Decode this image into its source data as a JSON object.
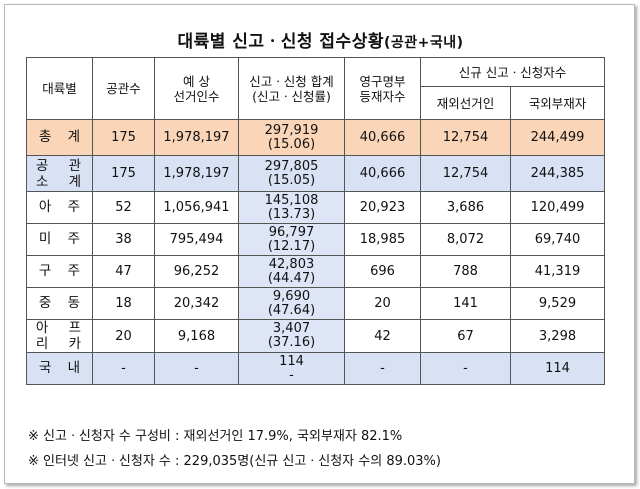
{
  "title": {
    "main": "대륙별 신고ㆍ신청 접수상황",
    "sub": "(공관+국내)"
  },
  "headers": {
    "region": "대륙별",
    "missions": "공관수",
    "expected": "예 상\n선거인수",
    "total": "신고ㆍ신청 합계\n(신고ㆍ신청률)",
    "permanent": "영구명부\n등재자수",
    "new_group": "신규 신고ㆍ신청자수",
    "overseas_voters": "재외선거인",
    "absentee": "국외부재자"
  },
  "rows": [
    {
      "region": "총 계",
      "missions": "175",
      "expected": "1,978,197",
      "total": "297,919",
      "rate": "(15.06)",
      "permanent": "40,666",
      "overseas": "12,754",
      "absentee": "244,499"
    },
    {
      "region": "공 관\n소 계",
      "missions": "175",
      "expected": "1,978,197",
      "total": "297,805",
      "rate": "(15.05)",
      "permanent": "40,666",
      "overseas": "12,754",
      "absentee": "244,385"
    },
    {
      "region": "아 주",
      "missions": "52",
      "expected": "1,056,941",
      "total": "145,108",
      "rate": "(13.73)",
      "permanent": "20,923",
      "overseas": "3,686",
      "absentee": "120,499"
    },
    {
      "region": "미 주",
      "missions": "38",
      "expected": "795,494",
      "total": "96,797",
      "rate": "(12.17)",
      "permanent": "18,985",
      "overseas": "8,072",
      "absentee": "69,740"
    },
    {
      "region": "구 주",
      "missions": "47",
      "expected": "96,252",
      "total": "42,803",
      "rate": "(44.47)",
      "permanent": "696",
      "overseas": "788",
      "absentee": "41,319"
    },
    {
      "region": "중 동",
      "missions": "18",
      "expected": "20,342",
      "total": "9,690",
      "rate": "(47.64)",
      "permanent": "20",
      "overseas": "141",
      "absentee": "9,529"
    },
    {
      "region": "아 프\n리 카",
      "missions": "20",
      "expected": "9,168",
      "total": "3,407",
      "rate": "(37.16)",
      "permanent": "42",
      "overseas": "67",
      "absentee": "3,298"
    },
    {
      "region": "국 내",
      "missions": "-",
      "expected": "-",
      "total": "114",
      "rate": "-",
      "permanent": "-",
      "overseas": "-",
      "absentee": "114"
    }
  ],
  "notes": [
    "※ 신고ㆍ신청자 수 구성비 : 재외선거인 17.9%, 국외부재자 82.1%",
    "※ 인터넷 신고ㆍ신청자 수 : 229,035명(신규 신고ㆍ신청자 수의 89.03%)"
  ]
}
